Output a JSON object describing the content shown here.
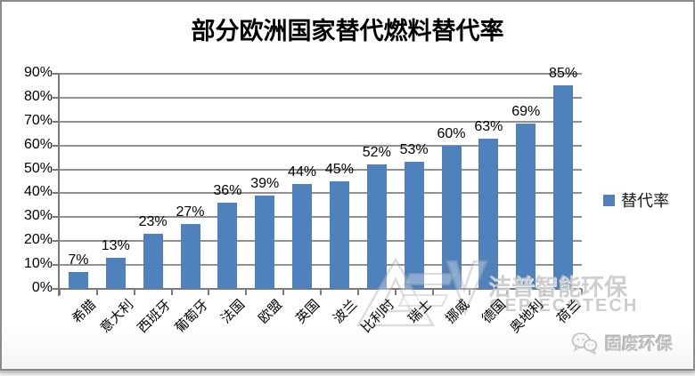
{
  "chart_data": {
    "type": "bar",
    "title": "部分欧洲国家替代燃料替代率",
    "categories": [
      "希腊",
      "意大利",
      "西班牙",
      "葡萄牙",
      "法国",
      "欧盟",
      "英国",
      "波兰",
      "比利时",
      "瑞士",
      "挪威",
      "德国",
      "奥地利",
      "荷兰"
    ],
    "series": [
      {
        "name": "替代率",
        "values": [
          7,
          13,
          23,
          27,
          36,
          39,
          44,
          45,
          52,
          53,
          60,
          63,
          69,
          85
        ]
      }
    ],
    "value_labels": [
      "7%",
      "13%",
      "23%",
      "27%",
      "36%",
      "39%",
      "44%",
      "45%",
      "52%",
      "53%",
      "60%",
      "63%",
      "69%",
      "85%"
    ],
    "y_ticks": [
      "0%",
      "10%",
      "20%",
      "30%",
      "40%",
      "50%",
      "60%",
      "70%",
      "80%",
      "90%"
    ],
    "ylim": [
      0,
      90
    ],
    "grid": true,
    "legend_position": "right",
    "bar_color": "#4F81BD",
    "grid_color": "#919191",
    "axis_color": "#7a7a7a"
  },
  "watermark": {
    "brand_cn": "洁普智能环保",
    "brand_en": "GEP ECOTECH",
    "badge": "固废环保"
  }
}
